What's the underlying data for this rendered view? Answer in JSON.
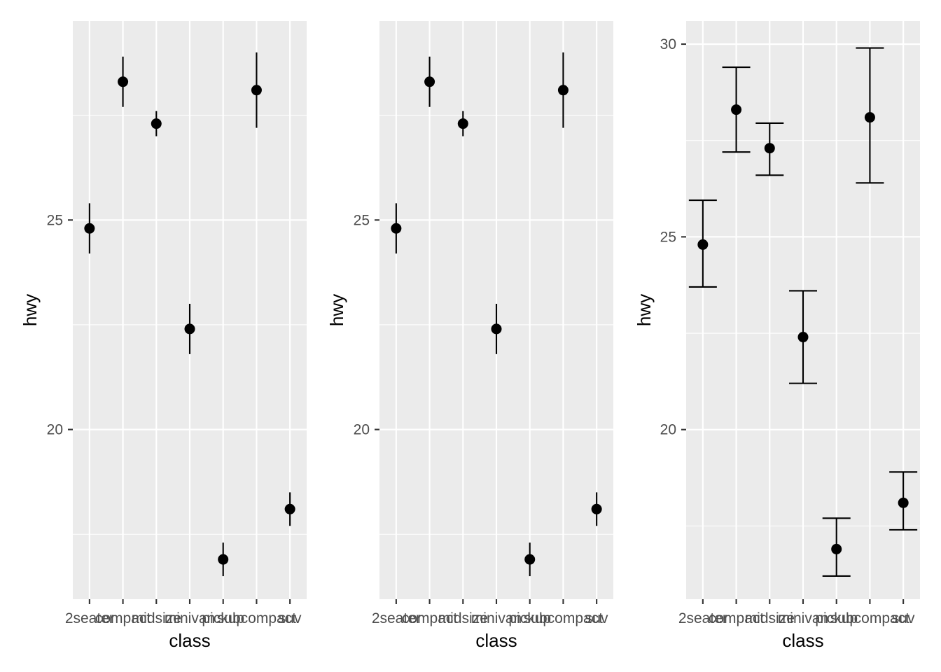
{
  "chart_data": [
    {
      "type": "pointrange",
      "xlabel": "class",
      "ylabel": "hwy",
      "categories": [
        "2seater",
        "compact",
        "midsize",
        "minivan",
        "pickup",
        "subcompact",
        "suv"
      ],
      "y": [
        24.8,
        28.3,
        27.3,
        22.4,
        16.9,
        28.1,
        18.1
      ],
      "ymin": [
        24.2,
        27.7,
        27.0,
        21.8,
        16.5,
        27.2,
        17.7
      ],
      "ymax": [
        25.4,
        28.9,
        27.6,
        23.0,
        17.3,
        29.0,
        18.5
      ],
      "ylim": [
        15.95,
        29.75
      ],
      "y_ticks": [
        20,
        25
      ],
      "y_tick_labels": [
        "20",
        "25"
      ],
      "error_bar_caps": false,
      "grid": true
    },
    {
      "type": "pointrange",
      "xlabel": "class",
      "ylabel": "hwy",
      "categories": [
        "2seater",
        "compact",
        "midsize",
        "minivan",
        "pickup",
        "subcompact",
        "suv"
      ],
      "y": [
        24.8,
        28.3,
        27.3,
        22.4,
        16.9,
        28.1,
        18.1
      ],
      "ymin": [
        24.2,
        27.7,
        27.0,
        21.8,
        16.5,
        27.2,
        17.7
      ],
      "ymax": [
        25.4,
        28.9,
        27.6,
        23.0,
        17.3,
        29.0,
        18.5
      ],
      "ylim": [
        15.95,
        29.75
      ],
      "y_ticks": [
        20,
        25
      ],
      "y_tick_labels": [
        "20",
        "25"
      ],
      "error_bar_caps": false,
      "grid": true
    },
    {
      "type": "errorbar",
      "xlabel": "class",
      "ylabel": "hwy",
      "categories": [
        "2seater",
        "compact",
        "midsize",
        "minivan",
        "pickup",
        "subcompact",
        "suv"
      ],
      "y": [
        24.8,
        28.3,
        27.3,
        22.4,
        16.9,
        28.1,
        18.1
      ],
      "ymin": [
        23.7,
        27.2,
        26.6,
        21.2,
        16.2,
        26.4,
        17.4
      ],
      "ymax": [
        25.95,
        29.4,
        27.95,
        23.6,
        17.7,
        29.9,
        18.9
      ],
      "ylim": [
        15.6,
        30.6
      ],
      "y_ticks": [
        20,
        25,
        30
      ],
      "y_tick_labels": [
        "20",
        "25",
        "30"
      ],
      "error_bar_caps": true,
      "grid": true
    }
  ]
}
